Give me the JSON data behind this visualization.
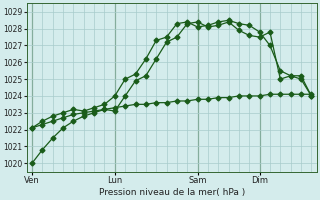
{
  "title": "",
  "xlabel": "Pression niveau de la mer( hPa )",
  "ylabel": "",
  "bg_color": "#d4ecec",
  "grid_color": "#a8cccc",
  "line_color": "#1a5c1a",
  "ylim": [
    1019.5,
    1029.5
  ],
  "x_tick_labels": [
    "Ven",
    "Lun",
    "Sam",
    "Dim"
  ],
  "x_tick_positions": [
    0,
    8,
    16,
    22
  ],
  "n_points": 28,
  "series1": [
    1020.0,
    1020.8,
    1021.5,
    1022.1,
    1022.5,
    1022.8,
    1023.0,
    1023.2,
    1023.1,
    1024.0,
    1024.9,
    1025.2,
    1026.2,
    1027.2,
    1027.5,
    1028.3,
    1028.4,
    1028.1,
    1028.2,
    1028.4,
    1027.9,
    1027.6,
    1027.5,
    1027.8,
    1025.0,
    1025.2,
    1025.2,
    1024.0
  ],
  "series2": [
    1022.1,
    1022.5,
    1022.8,
    1023.0,
    1023.2,
    1023.1,
    1023.3,
    1023.5,
    1024.0,
    1025.0,
    1025.3,
    1026.2,
    1027.3,
    1027.5,
    1028.3,
    1028.4,
    1028.1,
    1028.2,
    1028.4,
    1028.5,
    1028.3,
    1028.2,
    1027.8,
    1027.0,
    1025.5,
    1025.2,
    1025.0,
    1024.0
  ],
  "series3": [
    1022.1,
    1022.3,
    1022.5,
    1022.7,
    1022.9,
    1023.0,
    1023.1,
    1023.2,
    1023.3,
    1023.4,
    1023.5,
    1023.5,
    1023.6,
    1023.6,
    1023.7,
    1023.7,
    1023.8,
    1023.8,
    1023.9,
    1023.9,
    1024.0,
    1024.0,
    1024.0,
    1024.1,
    1024.1,
    1024.1,
    1024.1,
    1024.1
  ],
  "minor_x": [
    0,
    1,
    2,
    3,
    4,
    5,
    6,
    7,
    8,
    9,
    10,
    11,
    12,
    13,
    14,
    15,
    16,
    17,
    18,
    19,
    20,
    21,
    22,
    23,
    24,
    25,
    26,
    27
  ]
}
